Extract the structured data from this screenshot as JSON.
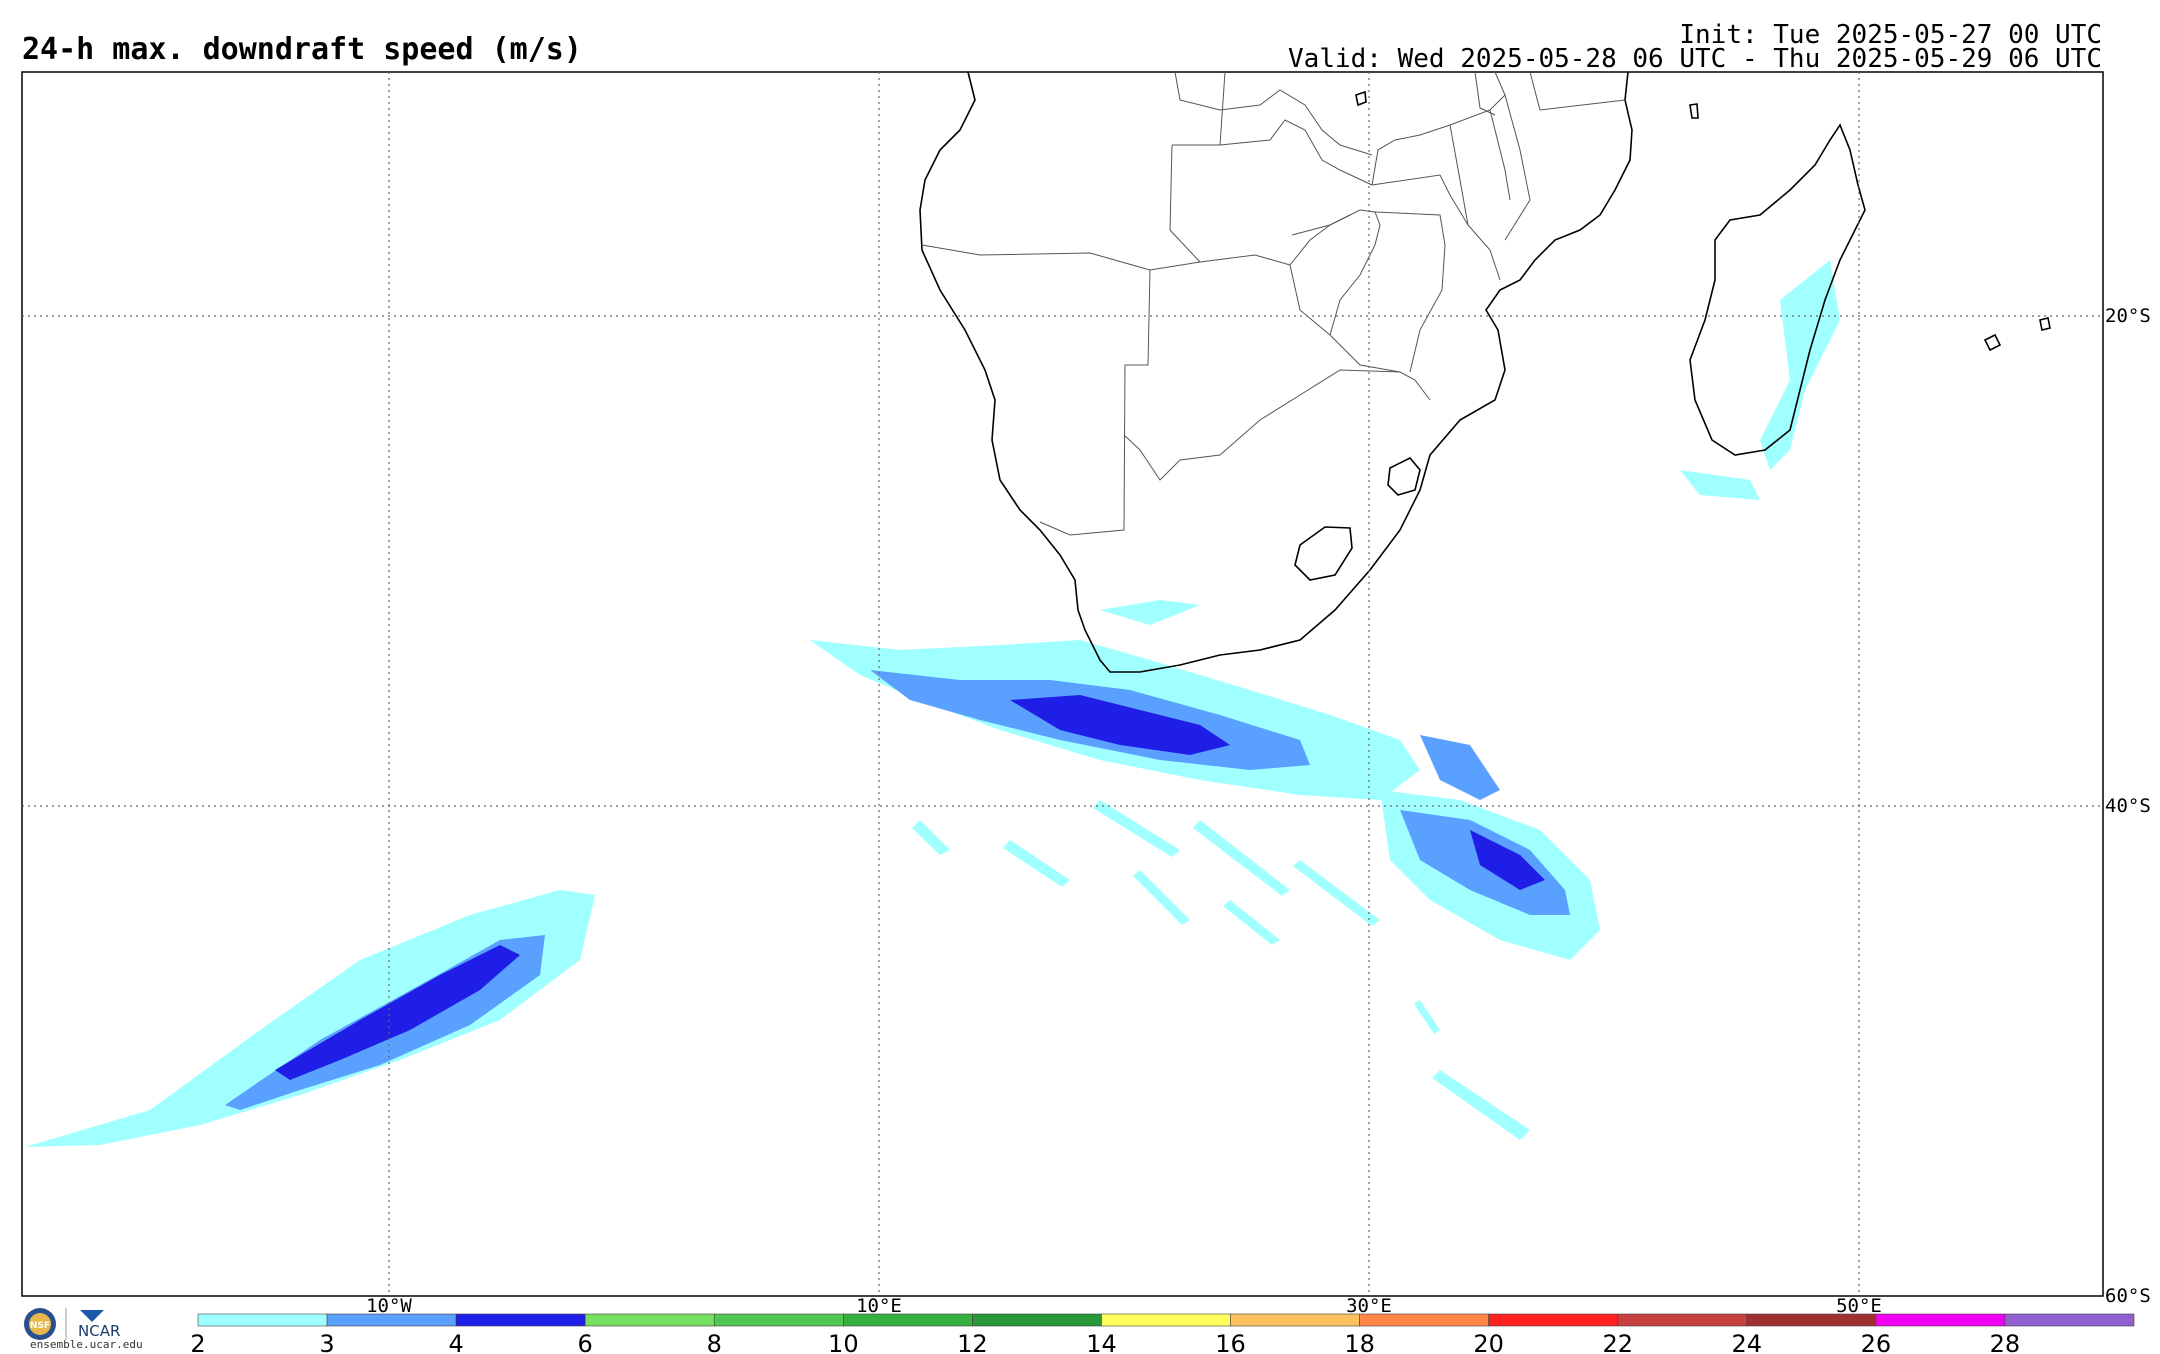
{
  "header": {
    "title": "24-h max. downdraft speed (m/s)",
    "init": "Init: Tue 2025-05-27 00 UTC",
    "valid": "Valid: Wed 2025-05-28 06 UTC - Thu 2025-05-29 06 UTC"
  },
  "map": {
    "lat_labels": [
      "20°S",
      "40°S",
      "60°S"
    ],
    "lon_labels": [
      "10°W",
      "10°E",
      "30°E",
      "50°E"
    ]
  },
  "colorbar": {
    "ticks": [
      "2",
      "3",
      "4",
      "6",
      "8",
      "10",
      "12",
      "14",
      "16",
      "18",
      "20",
      "22",
      "24",
      "26",
      "28"
    ],
    "colors": [
      "#a0ffff",
      "#5aa0ff",
      "#1e1ee6",
      "#78e060",
      "#50c850",
      "#38b040",
      "#289838",
      "#ffff60",
      "#ffc060",
      "#ff8848",
      "#ff2020",
      "#c84040",
      "#a03030",
      "#f000f0",
      "#9060d0"
    ]
  },
  "footer": {
    "ncar": "NCAR",
    "nsf": "NSF",
    "url": "ensemble.ucar.edu"
  }
}
